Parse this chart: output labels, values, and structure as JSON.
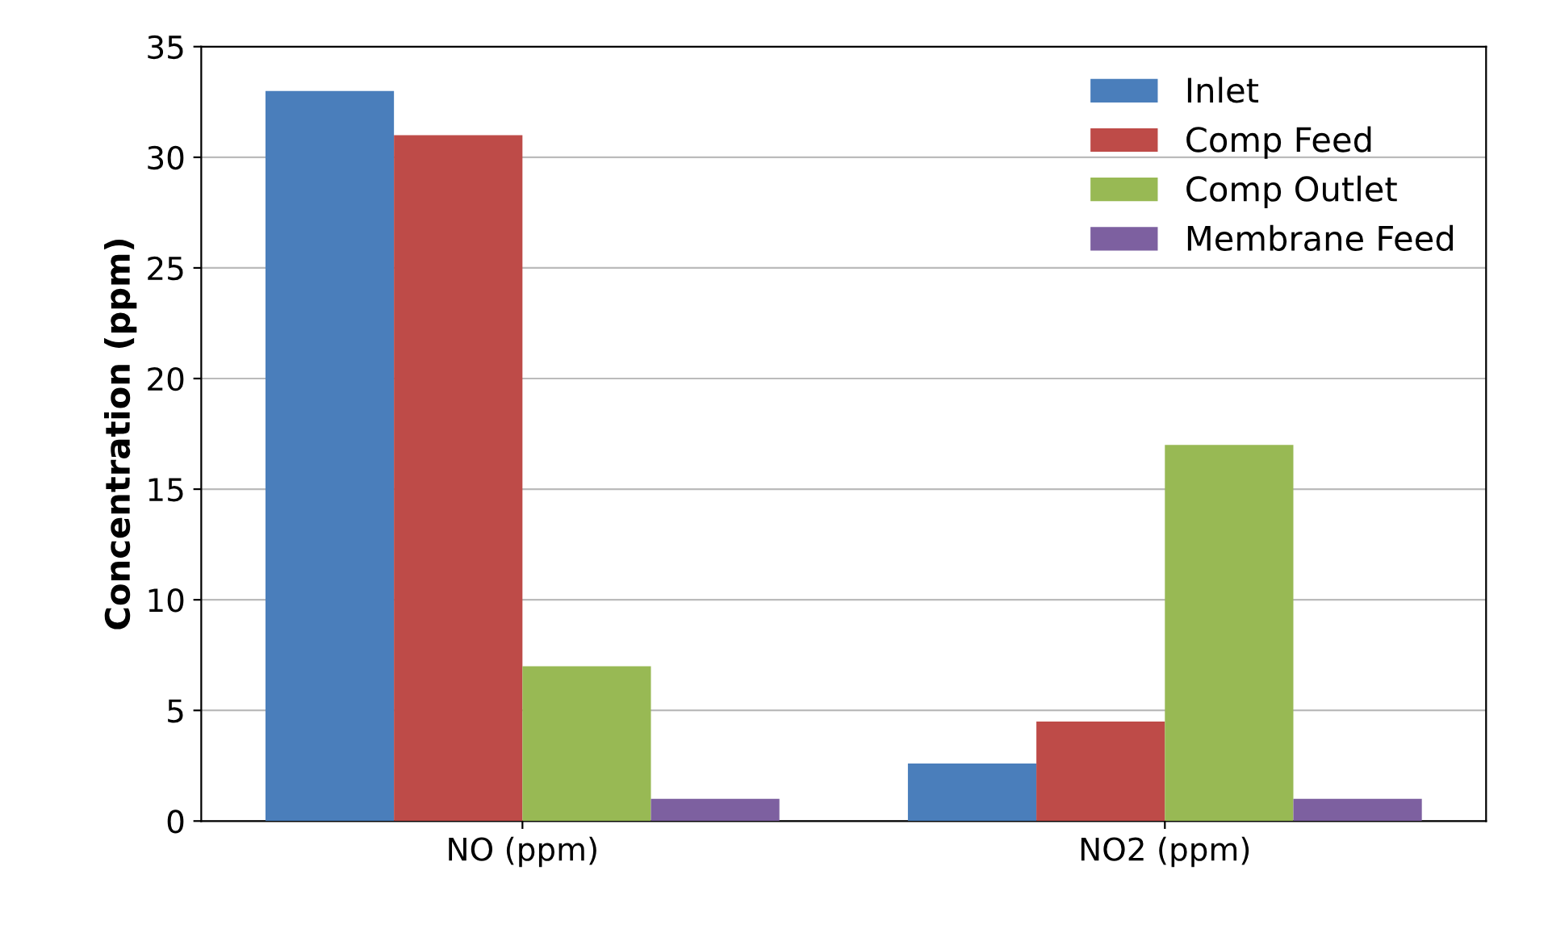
{
  "chart_data": {
    "type": "bar",
    "ylabel": "Concentration (ppm)",
    "categories": [
      "NO (ppm)",
      "NO2 (ppm)"
    ],
    "series": [
      {
        "name": "Inlet",
        "color": "#4a7ebb",
        "values": [
          33,
          2.6
        ]
      },
      {
        "name": "Comp Feed",
        "color": "#be4b48",
        "values": [
          31,
          4.5
        ]
      },
      {
        "name": "Comp Outlet",
        "color": "#98b954",
        "values": [
          7,
          17
        ]
      },
      {
        "name": "Membrane Feed",
        "color": "#7d60a0",
        "values": [
          1,
          1
        ]
      }
    ],
    "ylim": [
      0,
      35
    ],
    "yticks": [
      0,
      5,
      10,
      15,
      20,
      25,
      30,
      35
    ],
    "grid": "y",
    "legend": "top right"
  }
}
